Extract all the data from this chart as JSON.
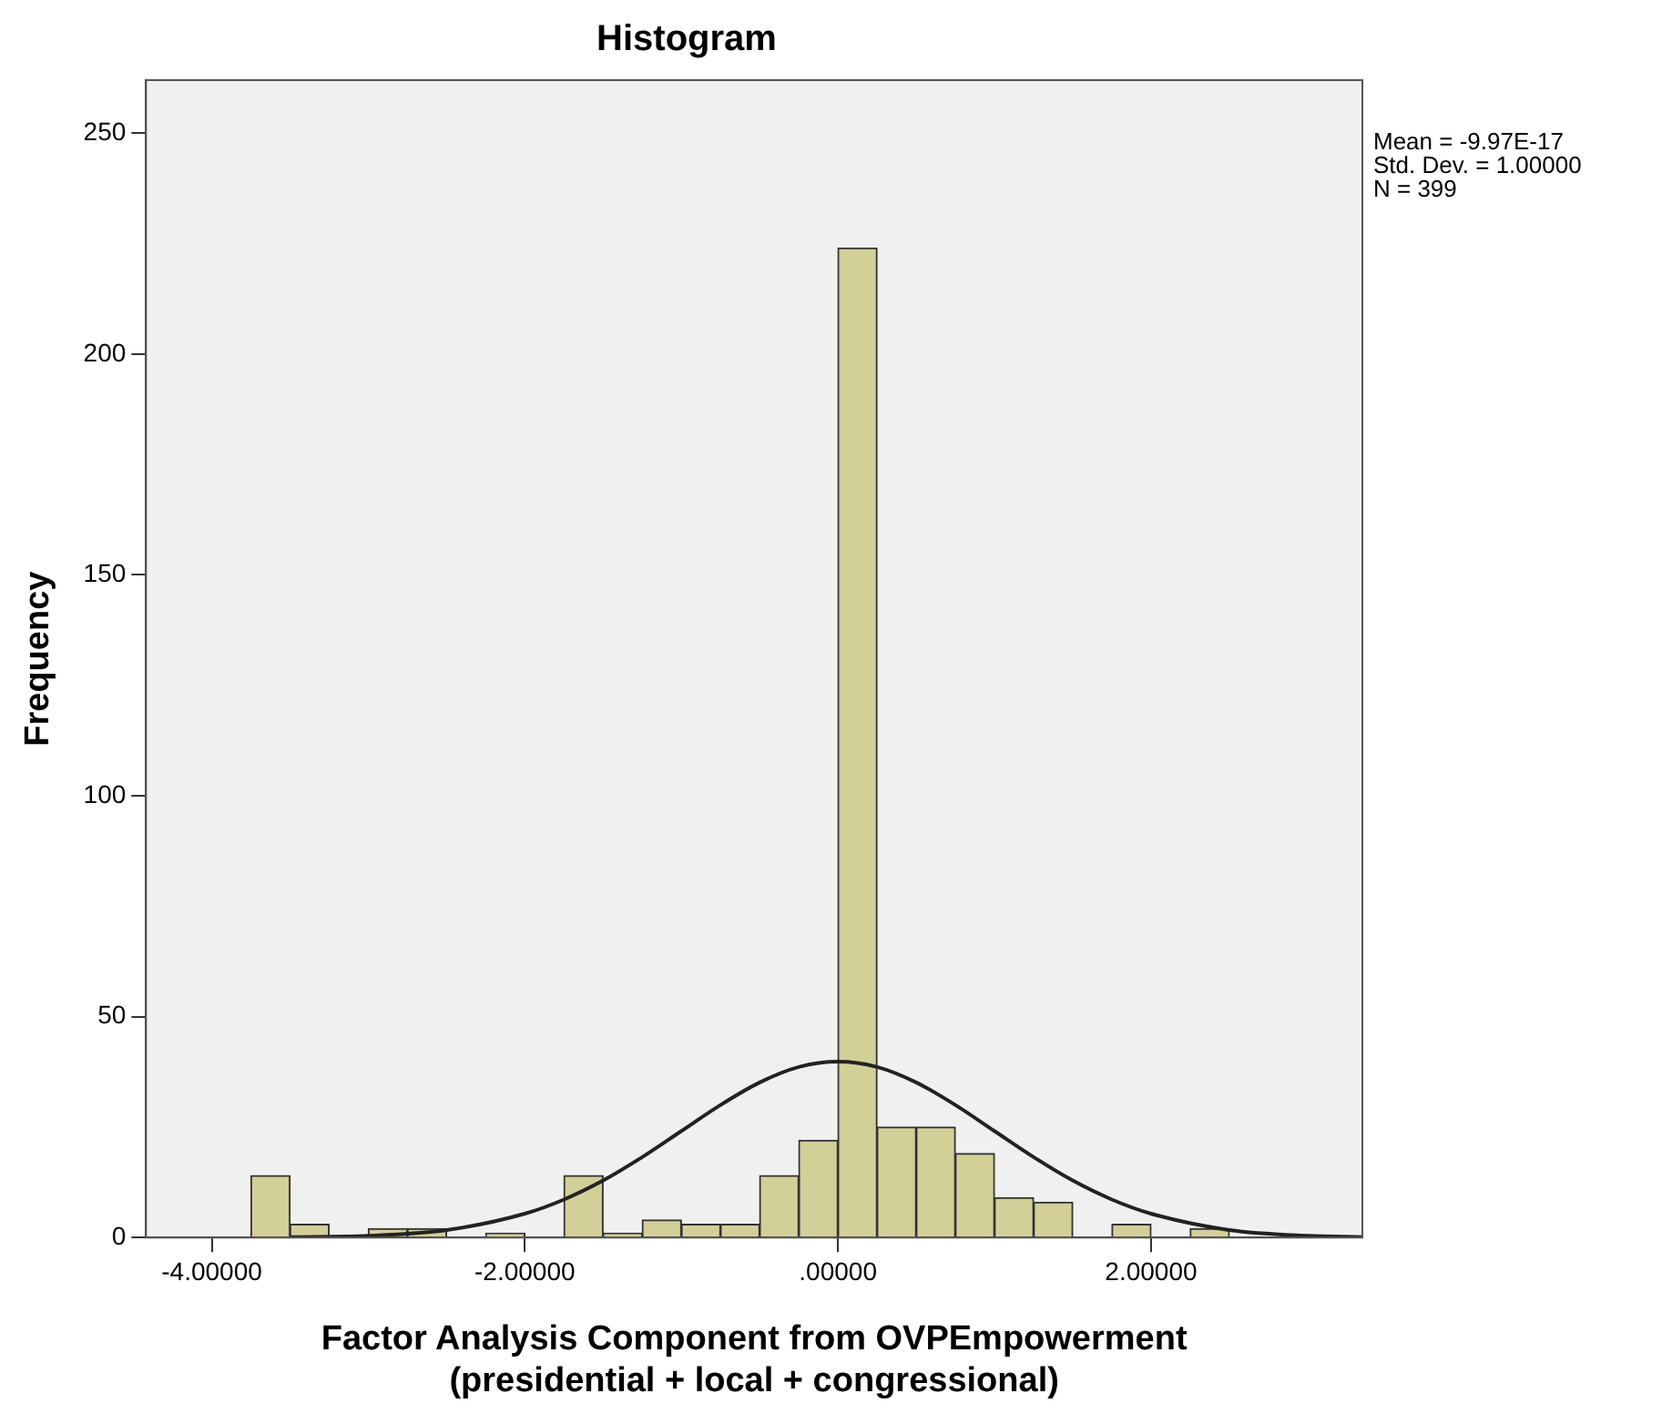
{
  "chart_data": {
    "type": "histogram",
    "title": "Histogram",
    "xlabel": "Factor Analysis Component from OVPEmpowerment\n(presidential + local + congressional)",
    "ylabel": "Frequency",
    "bins": [
      -3.75,
      -3.5,
      -3.25,
      -3,
      -2.75,
      -2.5,
      -2.25,
      -2,
      -1.75,
      -1.5,
      -1.25,
      -1,
      -0.75,
      -0.5,
      -0.25,
      0,
      0.25,
      0.5,
      0.75,
      1,
      1.25,
      1.5,
      1.75,
      2,
      2.25,
      2.5
    ],
    "values": [
      14,
      3,
      0,
      2,
      2,
      0,
      1,
      0,
      14,
      1,
      4,
      3,
      3,
      14,
      22,
      224,
      25,
      25,
      19,
      9,
      8,
      0,
      3,
      0,
      2
    ],
    "color": "#d3cf98",
    "series": [
      {
        "type": "line",
        "color": "#222222",
        "x": [
          -3.5,
          -3,
          -2.5,
          -2,
          -1.75,
          -1.5,
          -1.25,
          -1,
          -0.75,
          -0.5,
          -0.25,
          0,
          0.25,
          0.5,
          0.75,
          1,
          1.25,
          1.5,
          1.75,
          2,
          2.5,
          3,
          3.35
        ],
        "values": [
          0.1,
          0.4,
          1.7,
          5.4,
          8.6,
          12.9,
          18.2,
          24.1,
          30,
          35.1,
          38.6,
          39.8,
          38.6,
          35.1,
          30,
          24.1,
          18.2,
          12.9,
          8.6,
          5.4,
          1.7,
          0.4,
          0.1
        ]
      }
    ],
    "xlim": [
      -4.42,
      3.35
    ],
    "ylim": [
      0,
      262
    ],
    "xticks": [
      {
        "value": -4,
        "label": "-4.00000"
      },
      {
        "value": -2,
        "label": "-2.00000"
      },
      {
        "value": 0,
        "label": ".00000"
      },
      {
        "value": 2,
        "label": "2.00000"
      }
    ],
    "yticks": [
      0,
      50,
      100,
      150,
      200,
      250
    ],
    "grid": false,
    "legend": false,
    "marker": "none",
    "annotations": [
      "Mean = -9.97E-17",
      "Std. Dev. = 1.00000",
      "N = 399"
    ]
  }
}
